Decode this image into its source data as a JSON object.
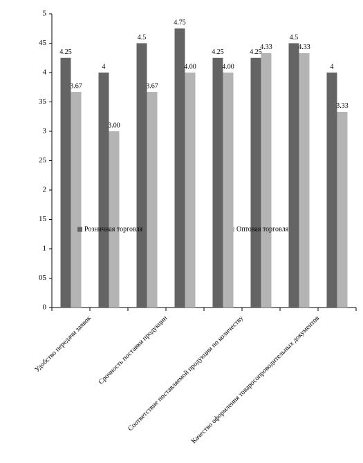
{
  "chart_data": {
    "type": "bar",
    "categories": [
      "Удобство передачи заявок",
      null,
      "Срочность поставки продукции",
      null,
      "Соответствие поставляемой продукции по количеству",
      null,
      "Качество оформления товаросопроводительных документов",
      null
    ],
    "series": [
      {
        "name": "Розничная торговля",
        "color": "#646464",
        "values": [
          4.25,
          4,
          4.5,
          4.75,
          4.25,
          4.25,
          4.5,
          4
        ],
        "value_labels": [
          "4.25",
          "4",
          "4.5",
          "4.75",
          "4.25",
          "4.25",
          "4.5",
          "4"
        ]
      },
      {
        "name": "Оптовая торговля",
        "color": "#b4b4b4",
        "values": [
          3.67,
          3,
          3.67,
          4,
          4,
          4.33,
          4.33,
          3.33
        ],
        "value_labels": [
          "3.67",
          "3.00",
          "3.67",
          "4.00",
          "4.00",
          "4.33",
          "4.33",
          "3.33"
        ]
      }
    ],
    "ylim": [
      0,
      5
    ],
    "yticks": [
      0,
      {
        "value": 0.5,
        "label": "05"
      },
      1,
      {
        "value": 1.5,
        "label": "15"
      },
      2,
      {
        "value": 2.5,
        "label": "25"
      },
      3,
      {
        "value": 3.5,
        "label": "35"
      },
      4,
      {
        "value": 4.5,
        "label": "45"
      },
      5
    ],
    "legend": "center"
  }
}
